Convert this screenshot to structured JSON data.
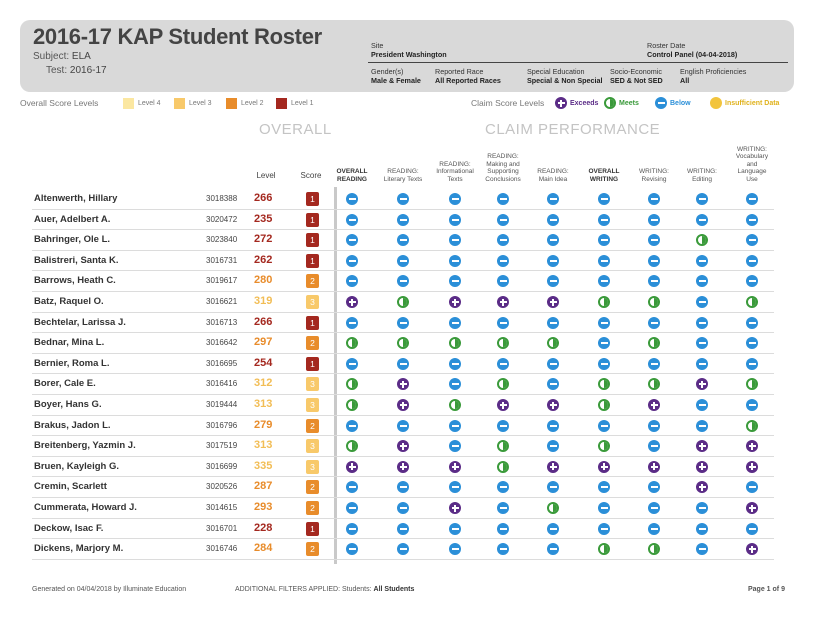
{
  "header": {
    "title": "2016-17 KAP Student Roster",
    "subject_label": "Subject:",
    "subject_value": "ELA",
    "test_label": "Test:",
    "test_value": "2016-17",
    "site_label": "Site",
    "site_value": "President Washington",
    "roster_date_label": "Roster Date",
    "roster_date_value": "Control Panel (04-04-2018)",
    "gender_label": "Gender(s)",
    "gender_value": "Male & Female",
    "race_label": "Reported Race",
    "race_value": "All Reported Races",
    "sped_label": "Special Education",
    "sped_value": "Special & Non Special",
    "ses_label": "Socio-Economic",
    "ses_value": "SED & Not SED",
    "elp_label": "English Proficiencies",
    "elp_value": "All"
  },
  "legend": {
    "overall_label": "Overall Score Levels",
    "levels": [
      {
        "label": "Level 4",
        "color": "#fbe7a1"
      },
      {
        "label": "Level 3",
        "color": "#f8c96a"
      },
      {
        "label": "Level 2",
        "color": "#e88c2b"
      },
      {
        "label": "Level 1",
        "color": "#a4281f"
      }
    ],
    "claim_label": "Claim Score Levels",
    "claims": [
      {
        "label": "Exceeds",
        "icon": "exceeds-icon",
        "color": "#5b2c87"
      },
      {
        "label": "Meets",
        "icon": "meets-icon",
        "color": "#3a9a3a"
      },
      {
        "label": "Below",
        "icon": "below-icon",
        "color": "#2b8fd8"
      },
      {
        "label": "Insufficient Data",
        "icon": "insufficient-icon",
        "color": "#e0b21c"
      }
    ]
  },
  "sections": {
    "overall": "OVERALL",
    "claim": "CLAIM PERFORMANCE"
  },
  "columns": {
    "level": "Level",
    "score": "Score",
    "claims": [
      [
        "OVERALL",
        "READING"
      ],
      [
        "READING:",
        "Literary Texts"
      ],
      [
        "READING:",
        "Informational",
        "Texts"
      ],
      [
        "READING:",
        "Making and",
        "Supporting",
        "Conclusions"
      ],
      [
        "READING:",
        "Main Idea"
      ],
      [
        "OVERALL",
        "WRITING"
      ],
      [
        "WRITING:",
        "Revising"
      ],
      [
        "WRITING:",
        "Editing"
      ],
      [
        "WRITING:",
        "Vocabulary",
        "and",
        "Language",
        "Use"
      ]
    ]
  },
  "students": [
    {
      "name": "Altenwerth, Hillary",
      "id": "3018388",
      "score": "266",
      "level": "1",
      "claims": [
        "b",
        "b",
        "b",
        "b",
        "b",
        "b",
        "b",
        "b",
        "b"
      ]
    },
    {
      "name": "Auer, Adelbert A.",
      "id": "3020472",
      "score": "235",
      "level": "1",
      "claims": [
        "b",
        "b",
        "b",
        "b",
        "b",
        "b",
        "b",
        "b",
        "b"
      ]
    },
    {
      "name": "Bahringer, Ole L.",
      "id": "3023840",
      "score": "272",
      "level": "1",
      "claims": [
        "b",
        "b",
        "b",
        "b",
        "b",
        "b",
        "b",
        "m",
        "b"
      ]
    },
    {
      "name": "Balistreri, Santa K.",
      "id": "3016731",
      "score": "262",
      "level": "1",
      "claims": [
        "b",
        "b",
        "b",
        "b",
        "b",
        "b",
        "b",
        "b",
        "b"
      ]
    },
    {
      "name": "Barrows, Heath C.",
      "id": "3019617",
      "score": "280",
      "level": "2",
      "claims": [
        "b",
        "b",
        "b",
        "b",
        "b",
        "b",
        "b",
        "b",
        "b"
      ]
    },
    {
      "name": "Batz, Raquel O.",
      "id": "3016621",
      "score": "319",
      "level": "3",
      "claims": [
        "e",
        "m",
        "e",
        "e",
        "e",
        "m",
        "m",
        "b",
        "m"
      ]
    },
    {
      "name": "Bechtelar, Larissa J.",
      "id": "3016713",
      "score": "266",
      "level": "1",
      "claims": [
        "b",
        "b",
        "b",
        "b",
        "b",
        "b",
        "b",
        "b",
        "b"
      ]
    },
    {
      "name": "Bednar, Mina L.",
      "id": "3016642",
      "score": "297",
      "level": "2",
      "claims": [
        "m",
        "m",
        "m",
        "m",
        "m",
        "b",
        "m",
        "b",
        "b"
      ]
    },
    {
      "name": "Bernier, Roma L.",
      "id": "3016695",
      "score": "254",
      "level": "1",
      "claims": [
        "b",
        "b",
        "b",
        "b",
        "b",
        "b",
        "b",
        "b",
        "b"
      ]
    },
    {
      "name": "Borer, Cale E.",
      "id": "3016416",
      "score": "312",
      "level": "3",
      "claims": [
        "m",
        "e",
        "b",
        "m",
        "b",
        "m",
        "m",
        "e",
        "m"
      ]
    },
    {
      "name": "Boyer, Hans G.",
      "id": "3019444",
      "score": "313",
      "level": "3",
      "claims": [
        "m",
        "e",
        "m",
        "e",
        "e",
        "m",
        "e",
        "b",
        "b"
      ]
    },
    {
      "name": "Brakus, Jadon L.",
      "id": "3016796",
      "score": "279",
      "level": "2",
      "claims": [
        "b",
        "b",
        "b",
        "b",
        "b",
        "b",
        "b",
        "b",
        "m"
      ]
    },
    {
      "name": "Breitenberg, Yazmin J.",
      "id": "3017519",
      "score": "313",
      "level": "3",
      "claims": [
        "m",
        "e",
        "b",
        "m",
        "b",
        "m",
        "b",
        "e",
        "e"
      ]
    },
    {
      "name": "Bruen, Kayleigh G.",
      "id": "3016699",
      "score": "335",
      "level": "3",
      "claims": [
        "e",
        "e",
        "e",
        "m",
        "e",
        "e",
        "e",
        "e",
        "e"
      ]
    },
    {
      "name": "Cremin, Scarlett",
      "id": "3020526",
      "score": "287",
      "level": "2",
      "claims": [
        "b",
        "b",
        "b",
        "b",
        "b",
        "b",
        "b",
        "e",
        "b"
      ]
    },
    {
      "name": "Cummerata, Howard J.",
      "id": "3014615",
      "score": "293",
      "level": "2",
      "claims": [
        "b",
        "b",
        "e",
        "b",
        "m",
        "b",
        "b",
        "b",
        "e"
      ]
    },
    {
      "name": "Deckow, Isac F.",
      "id": "3016701",
      "score": "228",
      "level": "1",
      "claims": [
        "b",
        "b",
        "b",
        "b",
        "b",
        "b",
        "b",
        "b",
        "b"
      ]
    },
    {
      "name": "Dickens, Marjory M.",
      "id": "3016746",
      "score": "284",
      "level": "2",
      "claims": [
        "b",
        "b",
        "b",
        "b",
        "b",
        "m",
        "m",
        "b",
        "e"
      ]
    }
  ],
  "footer": {
    "generated": "Generated on 04/04/2018 by Illuminate Education",
    "filters_label": "ADDITIONAL FILTERS APPLIED:",
    "filters_students": "Students:",
    "filters_value": "All Students",
    "page": "Page 1 of 9"
  }
}
